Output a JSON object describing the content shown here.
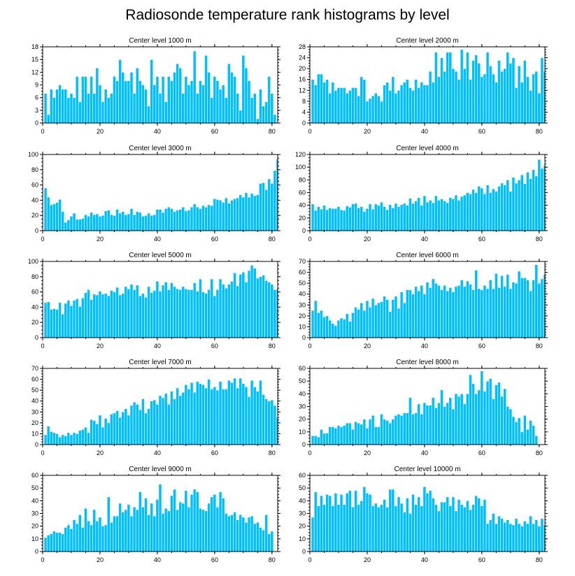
{
  "figure": {
    "title": "Radiosonde temperature rank histograms by level",
    "bar_color": "#00bfff"
  },
  "chart_data": [
    {
      "type": "bar",
      "title": "Center level 1000 m",
      "ylim": [
        0,
        18
      ],
      "yticks": [
        0,
        3,
        6,
        9,
        12,
        15,
        18
      ],
      "xlim": [
        0,
        82
      ],
      "xticks": [
        0,
        20,
        40,
        60,
        80
      ],
      "x_start": 1,
      "values": [
        7,
        2,
        8,
        6,
        8,
        9,
        8,
        8,
        6,
        7,
        6,
        11,
        5,
        11,
        11,
        7,
        11,
        7,
        13,
        9,
        5,
        8,
        6,
        7,
        11,
        10,
        15,
        12,
        10,
        10,
        12,
        7,
        13,
        10,
        9,
        8,
        4,
        15,
        9,
        11,
        7,
        11,
        5,
        11,
        10,
        12,
        14,
        13,
        7,
        11,
        9,
        10,
        17,
        7,
        10,
        9,
        16,
        12,
        6,
        11,
        10,
        8,
        9,
        6,
        14,
        12,
        11,
        7,
        3,
        16,
        13,
        10,
        6,
        7,
        1,
        8,
        4,
        5,
        11,
        7,
        2
      ],
      "xlabel": "",
      "ylabel": ""
    },
    {
      "type": "bar",
      "title": "Center level 2000 m",
      "ylim": [
        0,
        28
      ],
      "yticks": [
        0,
        4,
        8,
        12,
        16,
        20,
        24,
        28
      ],
      "xlim": [
        0,
        82
      ],
      "xticks": [
        0,
        20,
        40,
        60,
        80
      ],
      "x_start": 1,
      "values": [
        16,
        14,
        18,
        18,
        15,
        16,
        11,
        15,
        12,
        13,
        13,
        13,
        11,
        12,
        13,
        13,
        10,
        17,
        16,
        8,
        9,
        10,
        11,
        10,
        8,
        14,
        15,
        12,
        17,
        11,
        12,
        14,
        15,
        16,
        13,
        12,
        16,
        13,
        15,
        14,
        14,
        19,
        15,
        26,
        17,
        24,
        19,
        26,
        26,
        20,
        19,
        16,
        27,
        20,
        26,
        16,
        23,
        25,
        22,
        17,
        18,
        26,
        21,
        18,
        15,
        23,
        19,
        20,
        26,
        22,
        24,
        13,
        21,
        15,
        23,
        17,
        12,
        18,
        19,
        11,
        24,
        19
      ],
      "xlabel": "",
      "ylabel": ""
    },
    {
      "type": "bar",
      "title": "Center level 3000 m",
      "ylim": [
        0,
        100
      ],
      "yticks": [
        0,
        20,
        40,
        60,
        80,
        100
      ],
      "xlim": [
        0,
        82
      ],
      "xticks": [
        0,
        20,
        40,
        60,
        80
      ],
      "x_start": 1,
      "values": [
        56,
        44,
        34,
        35,
        37,
        41,
        25,
        11,
        14,
        19,
        23,
        15,
        15,
        16,
        21,
        19,
        24,
        21,
        22,
        19,
        20,
        26,
        27,
        21,
        20,
        28,
        23,
        25,
        21,
        22,
        29,
        21,
        25,
        24,
        19,
        20,
        23,
        20,
        21,
        28,
        28,
        24,
        29,
        31,
        29,
        25,
        27,
        28,
        31,
        26,
        27,
        31,
        35,
        31,
        29,
        33,
        31,
        34,
        33,
        42,
        41,
        40,
        37,
        43,
        36,
        40,
        42,
        43,
        47,
        44,
        50,
        44,
        49,
        46,
        47,
        62,
        63,
        54,
        68,
        62,
        79,
        94
      ],
      "xlabel": "",
      "ylabel": ""
    },
    {
      "type": "bar",
      "title": "Center level 4000 m",
      "ylim": [
        0,
        120
      ],
      "yticks": [
        0,
        20,
        40,
        60,
        80,
        100,
        120
      ],
      "xlim": [
        0,
        82
      ],
      "xticks": [
        0,
        20,
        40,
        60,
        80
      ],
      "x_start": 1,
      "values": [
        42,
        32,
        38,
        34,
        40,
        33,
        36,
        35,
        35,
        38,
        33,
        32,
        39,
        37,
        42,
        43,
        36,
        38,
        30,
        35,
        42,
        34,
        42,
        40,
        45,
        38,
        33,
        41,
        36,
        43,
        38,
        41,
        43,
        40,
        51,
        43,
        47,
        52,
        40,
        55,
        45,
        48,
        44,
        55,
        48,
        50,
        47,
        44,
        52,
        50,
        56,
        48,
        54,
        56,
        60,
        58,
        65,
        60,
        70,
        67,
        58,
        72,
        60,
        66,
        62,
        70,
        75,
        72,
        80,
        62,
        84,
        75,
        80,
        88,
        74,
        92,
        82,
        96,
        86,
        112,
        98,
        103,
        101
      ],
      "xlabel": "",
      "ylabel": ""
    },
    {
      "type": "bar",
      "title": "Center level 5000 m",
      "ylim": [
        0,
        100
      ],
      "yticks": [
        0,
        20,
        40,
        60,
        80,
        100
      ],
      "xlim": [
        0,
        82
      ],
      "xticks": [
        0,
        20,
        40,
        60,
        80
      ],
      "x_start": 1,
      "values": [
        46,
        47,
        37,
        38,
        37,
        46,
        31,
        45,
        49,
        42,
        49,
        51,
        41,
        52,
        59,
        63,
        50,
        57,
        56,
        61,
        57,
        58,
        55,
        62,
        60,
        66,
        56,
        58,
        67,
        64,
        70,
        63,
        69,
        55,
        58,
        53,
        67,
        59,
        62,
        74,
        61,
        69,
        73,
        63,
        72,
        67,
        64,
        63,
        67,
        64,
        63,
        63,
        72,
        61,
        77,
        60,
        58,
        63,
        77,
        55,
        63,
        77,
        70,
        65,
        70,
        74,
        85,
        68,
        83,
        86,
        73,
        88,
        95,
        91,
        78,
        80,
        82,
        75,
        73,
        70,
        63,
        64,
        62,
        72,
        60
      ],
      "xlabel": "",
      "ylabel": ""
    },
    {
      "type": "bar",
      "title": "Center level 6000 m",
      "ylim": [
        0,
        70
      ],
      "yticks": [
        0,
        10,
        20,
        30,
        40,
        50,
        60,
        70
      ],
      "xlim": [
        0,
        82
      ],
      "xticks": [
        0,
        20,
        40,
        60,
        80
      ],
      "x_start": 1,
      "values": [
        25,
        34,
        23,
        25,
        19,
        20,
        16,
        13,
        11,
        16,
        18,
        17,
        22,
        15,
        23,
        28,
        26,
        32,
        25,
        34,
        28,
        36,
        30,
        32,
        33,
        38,
        35,
        24,
        35,
        38,
        27,
        42,
        32,
        44,
        44,
        40,
        47,
        43,
        48,
        40,
        51,
        46,
        54,
        50,
        48,
        44,
        48,
        43,
        46,
        42,
        47,
        48,
        53,
        47,
        52,
        49,
        44,
        62,
        45,
        44,
        48,
        45,
        53,
        45,
        59,
        46,
        57,
        47,
        58,
        45,
        51,
        50,
        61,
        55,
        55,
        53,
        43,
        53,
        67,
        50,
        54,
        58,
        68,
        48,
        62,
        64,
        42
      ],
      "xlabel": "",
      "ylabel": ""
    },
    {
      "type": "bar",
      "title": "Center level 7000 m",
      "ylim": [
        0,
        70
      ],
      "yticks": [
        0,
        10,
        20,
        30,
        40,
        50,
        60,
        70
      ],
      "xlim": [
        0,
        82
      ],
      "xticks": [
        0,
        20,
        40,
        60,
        80
      ],
      "x_start": 1,
      "values": [
        9,
        17,
        12,
        11,
        10,
        7,
        9,
        8,
        11,
        9,
        11,
        10,
        13,
        14,
        16,
        11,
        23,
        22,
        19,
        27,
        16,
        24,
        20,
        28,
        29,
        31,
        25,
        30,
        33,
        27,
        36,
        39,
        37,
        32,
        42,
        29,
        33,
        40,
        41,
        37,
        45,
        43,
        47,
        37,
        49,
        42,
        52,
        45,
        48,
        55,
        51,
        57,
        48,
        58,
        56,
        55,
        52,
        60,
        51,
        53,
        50,
        58,
        51,
        51,
        59,
        57,
        61,
        52,
        61,
        56,
        53,
        44,
        59,
        53,
        49,
        59,
        46,
        42,
        40,
        41,
        36,
        25,
        14
      ],
      "xlabel": "",
      "ylabel": ""
    },
    {
      "type": "bar",
      "title": "Center level 8000 m",
      "ylim": [
        0,
        60
      ],
      "yticks": [
        0,
        10,
        20,
        30,
        40,
        50,
        60
      ],
      "xlim": [
        0,
        82
      ],
      "xticks": [
        0,
        20,
        40,
        60,
        80
      ],
      "x_start": 1,
      "values": [
        7,
        7,
        6,
        12,
        9,
        9,
        14,
        14,
        13,
        15,
        14,
        15,
        17,
        17,
        12,
        18,
        17,
        16,
        20,
        13,
        20,
        23,
        14,
        14,
        24,
        20,
        19,
        17,
        20,
        23,
        24,
        23,
        25,
        25,
        37,
        24,
        25,
        32,
        24,
        33,
        31,
        31,
        37,
        29,
        33,
        43,
        30,
        33,
        37,
        28,
        40,
        38,
        40,
        32,
        40,
        55,
        48,
        40,
        43,
        58,
        42,
        50,
        52,
        36,
        47,
        49,
        38,
        44,
        30,
        28,
        22,
        18,
        21,
        10,
        23,
        12,
        19,
        15,
        7
      ],
      "xlabel": "",
      "ylabel": ""
    },
    {
      "type": "bar",
      "title": "Center level 9000 m",
      "ylim": [
        0,
        60
      ],
      "yticks": [
        0,
        10,
        20,
        30,
        40,
        50,
        60
      ],
      "xlim": [
        0,
        82
      ],
      "xticks": [
        0,
        20,
        40,
        60,
        80
      ],
      "x_start": 1,
      "values": [
        11,
        13,
        14,
        16,
        15,
        15,
        14,
        19,
        21,
        18,
        25,
        22,
        29,
        19,
        34,
        24,
        21,
        33,
        24,
        27,
        20,
        21,
        43,
        23,
        28,
        28,
        38,
        31,
        33,
        37,
        28,
        35,
        33,
        47,
        35,
        42,
        29,
        38,
        28,
        41,
        53,
        30,
        34,
        32,
        44,
        49,
        33,
        39,
        38,
        48,
        35,
        45,
        49,
        47,
        34,
        33,
        32,
        38,
        43,
        45,
        35,
        47,
        42,
        30,
        28,
        29,
        31,
        25,
        29,
        27,
        23,
        27,
        28,
        22,
        23,
        19,
        17,
        29,
        14,
        16
      ],
      "xlabel": "",
      "ylabel": ""
    },
    {
      "type": "bar",
      "title": "Center level 10000 m",
      "ylim": [
        0,
        60
      ],
      "yticks": [
        0,
        10,
        20,
        30,
        40,
        50,
        60
      ],
      "xlim": [
        0,
        82
      ],
      "xticks": [
        0,
        20,
        40,
        60,
        80
      ],
      "x_start": 1,
      "values": [
        27,
        47,
        36,
        44,
        37,
        45,
        44,
        36,
        46,
        37,
        45,
        37,
        46,
        48,
        35,
        48,
        37,
        40,
        51,
        46,
        45,
        36,
        38,
        35,
        37,
        41,
        35,
        49,
        49,
        36,
        43,
        38,
        31,
        42,
        30,
        45,
        37,
        43,
        36,
        51,
        46,
        48,
        42,
        37,
        32,
        39,
        39,
        43,
        36,
        43,
        32,
        41,
        37,
        35,
        40,
        33,
        37,
        44,
        42,
        36,
        41,
        22,
        25,
        30,
        22,
        28,
        26,
        23,
        25,
        22,
        21,
        26,
        22,
        20,
        24,
        22,
        28,
        22,
        25,
        20,
        26,
        21,
        22,
        26,
        22
      ],
      "xlabel": "",
      "ylabel": ""
    }
  ]
}
